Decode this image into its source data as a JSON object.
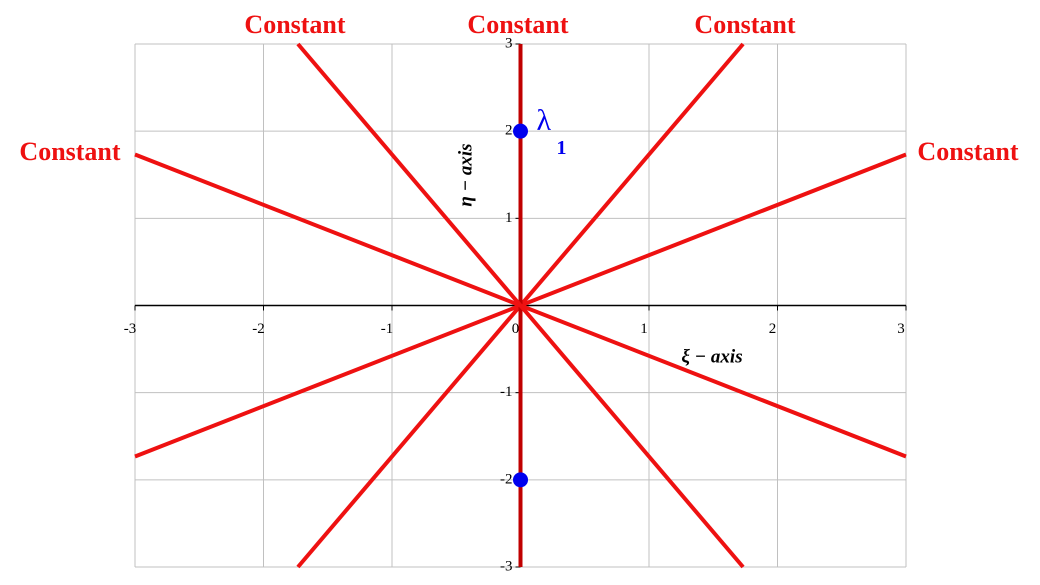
{
  "chart_data": {
    "type": "line",
    "annotations": [
      "Constant",
      "Constant",
      "Constant",
      "Constant",
      "Constant"
    ],
    "xlabel": "ξ − axis",
    "ylabel": "η − axis",
    "xlim": [
      -3,
      3
    ],
    "ylim": [
      -3,
      3
    ],
    "xticks": [
      -3,
      -2,
      -1,
      0,
      1,
      2,
      3
    ],
    "yticks": [
      -3,
      -2,
      -1,
      1,
      2,
      3
    ],
    "grid": true,
    "series": [
      {
        "color": "#ee1111",
        "x": [
          -3,
          3
        ],
        "values": [
          -1.732,
          1.732
        ]
      },
      {
        "color": "#ee1111",
        "x": [
          -1.732,
          1.732
        ],
        "values": [
          -3,
          3
        ]
      },
      {
        "color": "#c00000",
        "x": [
          0,
          0
        ],
        "values": [
          -3,
          3
        ]
      },
      {
        "color": "#ee1111",
        "x": [
          -1.732,
          1.732
        ],
        "values": [
          3,
          -3
        ]
      },
      {
        "color": "#ee1111",
        "x": [
          -3,
          3
        ],
        "values": [
          1.732,
          -1.732
        ]
      }
    ],
    "points": {
      "color": "#0000ee",
      "x": [
        0,
        0
      ],
      "values": [
        2,
        -2
      ],
      "label": "λ",
      "label_sub": "1"
    }
  }
}
